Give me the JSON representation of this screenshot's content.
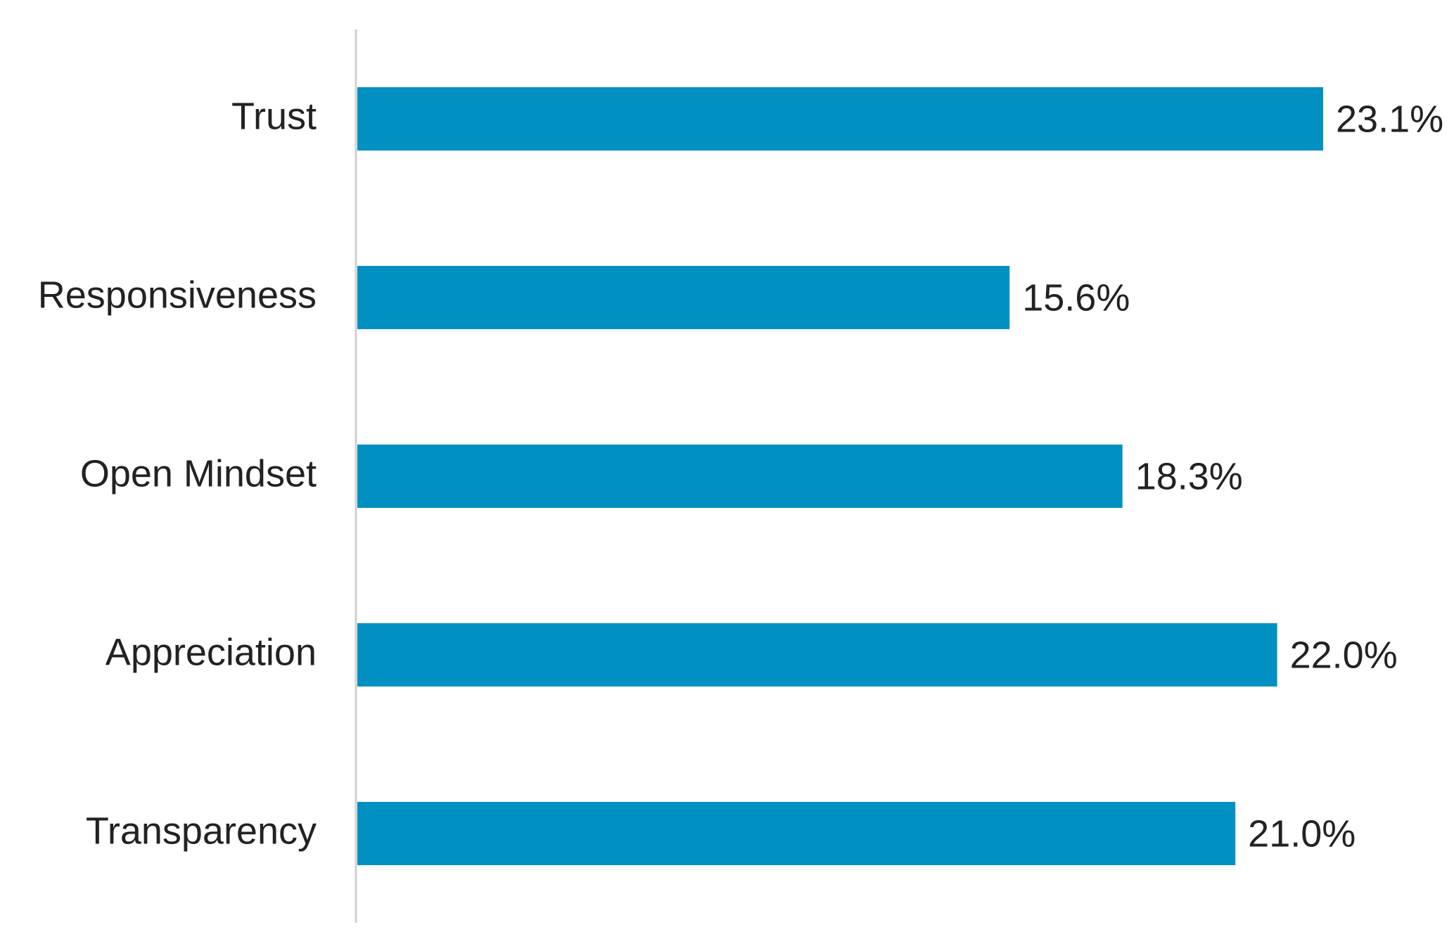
{
  "chart_data": {
    "type": "bar",
    "orientation": "horizontal",
    "categories": [
      "Trust",
      "Responsiveness",
      "Open Mindset",
      "Appreciation",
      "Transparency"
    ],
    "values": [
      23.1,
      15.6,
      18.3,
      22.0,
      21.0
    ],
    "value_labels": [
      "23.1%",
      "15.6%",
      "18.3%",
      "22.0%",
      "21.0%"
    ],
    "unit": "%",
    "title": "",
    "xlabel": "",
    "ylabel": "",
    "xlim": [
      0,
      23.1
    ],
    "grid": false,
    "legend": "none",
    "bar_color": "#0090C1",
    "axis_color": "#CFCFCF",
    "text_color": "#222222"
  }
}
